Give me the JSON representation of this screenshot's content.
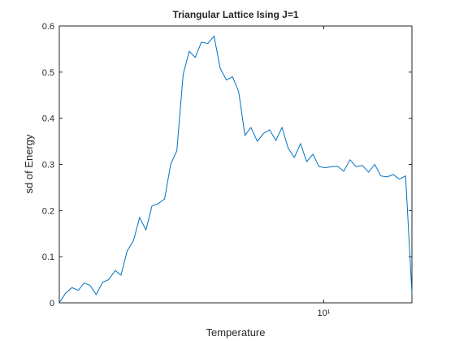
{
  "chart_data": {
    "type": "line",
    "title": "Triangular Lattice Ising J=1",
    "xlabel": "Temperature",
    "ylabel": "sd of Energy",
    "xscale": "log",
    "xlim": [
      1.25,
      20
    ],
    "xticks": [
      {
        "value": 10,
        "label": "10¹"
      }
    ],
    "ylim": [
      0,
      0.6
    ],
    "yticks": [
      0,
      0.1,
      0.2,
      0.3,
      0.4,
      0.5,
      0.6
    ],
    "grid": false,
    "series": [
      {
        "name": "sd of Energy",
        "color": "#0072bd",
        "x": [
          1.25,
          1.31,
          1.38,
          1.45,
          1.52,
          1.59,
          1.67,
          1.76,
          1.84,
          1.94,
          2.03,
          2.13,
          2.24,
          2.35,
          2.47,
          2.59,
          2.72,
          2.86,
          3.0,
          3.15,
          3.31,
          3.47,
          3.64,
          3.82,
          4.02,
          4.22,
          4.43,
          4.65,
          4.88,
          5.12,
          5.38,
          5.64,
          5.93,
          6.22,
          6.53,
          6.86,
          7.2,
          7.56,
          7.93,
          8.33,
          8.74,
          9.18,
          9.64,
          10.12,
          10.62,
          11.15,
          11.7,
          12.29,
          12.9,
          13.54,
          14.22,
          14.93,
          15.67,
          16.45,
          17.27,
          18.13,
          19.03,
          20
        ],
        "values": [
          0,
          0.02,
          0.033,
          0.027,
          0.043,
          0.038,
          0.018,
          0.045,
          0.05,
          0.07,
          0.06,
          0.112,
          0.135,
          0.185,
          0.158,
          0.21,
          0.215,
          0.225,
          0.3,
          0.33,
          0.495,
          0.545,
          0.532,
          0.565,
          0.562,
          0.578,
          0.508,
          0.483,
          0.49,
          0.458,
          0.363,
          0.38,
          0.35,
          0.367,
          0.375,
          0.352,
          0.38,
          0.335,
          0.315,
          0.345,
          0.306,
          0.322,
          0.295,
          0.293,
          0.295,
          0.296,
          0.285,
          0.31,
          0.295,
          0.298,
          0.283,
          0.3,
          0.275,
          0.273,
          0.278,
          0.268,
          0.275,
          0.02
        ]
      }
    ]
  }
}
